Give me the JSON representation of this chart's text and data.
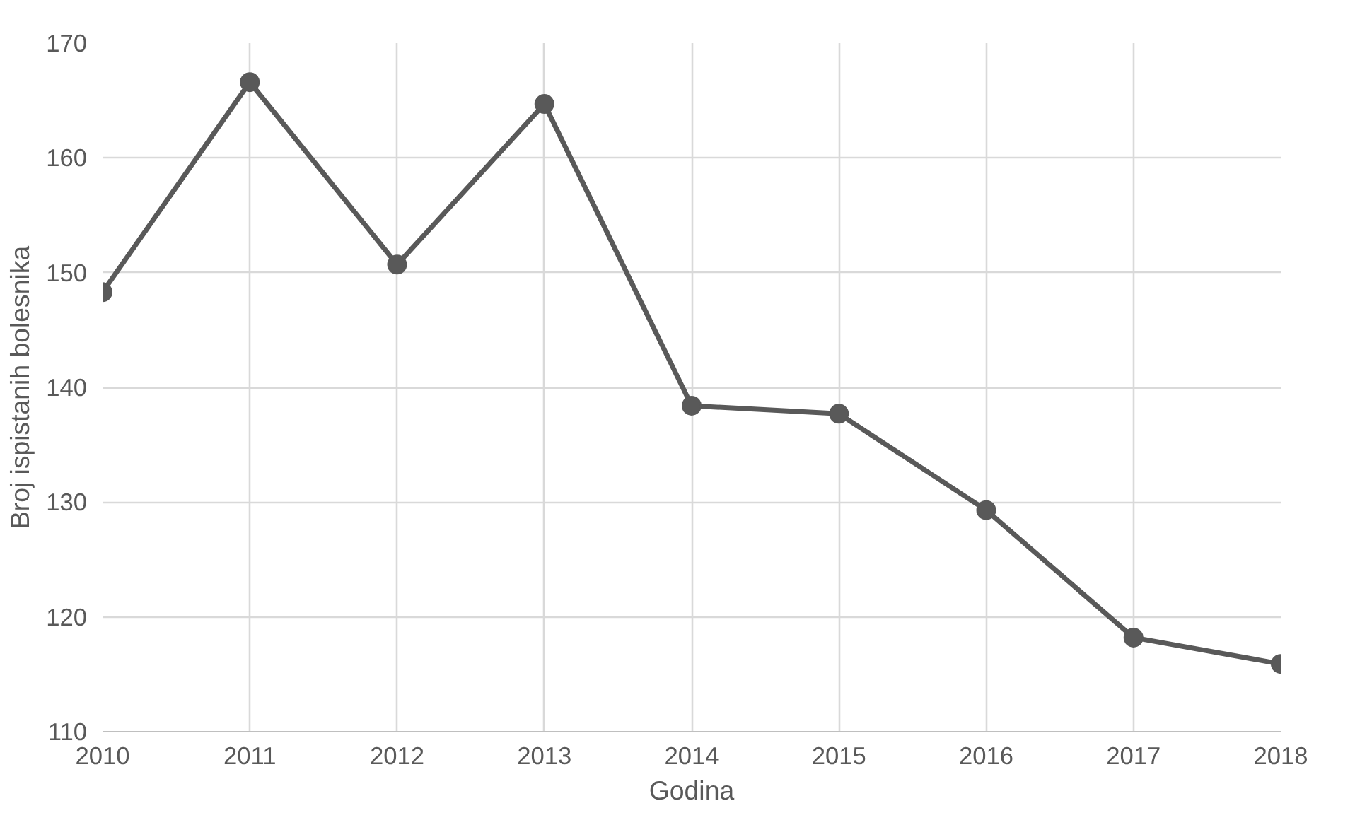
{
  "chart_data": {
    "type": "line",
    "xlabel": "Godina",
    "ylabel": "Broj ispistanih bolesnika",
    "x": [
      2010,
      2011,
      2012,
      2013,
      2014,
      2015,
      2016,
      2017,
      2018
    ],
    "series": [
      {
        "color": "#595959",
        "values": [
          148.3,
          166.6,
          150.7,
          164.7,
          138.4,
          137.7,
          129.3,
          118.2,
          115.9
        ]
      }
    ],
    "xlim": [
      2010,
      2018
    ],
    "xticks": [
      2010,
      2011,
      2012,
      2013,
      2014,
      2015,
      2016,
      2017,
      2018
    ],
    "ylim": [
      110,
      170
    ],
    "yticks": [
      110,
      120,
      130,
      140,
      150,
      160,
      170
    ],
    "grid": true,
    "marker": "circle",
    "line_style": "solid"
  }
}
